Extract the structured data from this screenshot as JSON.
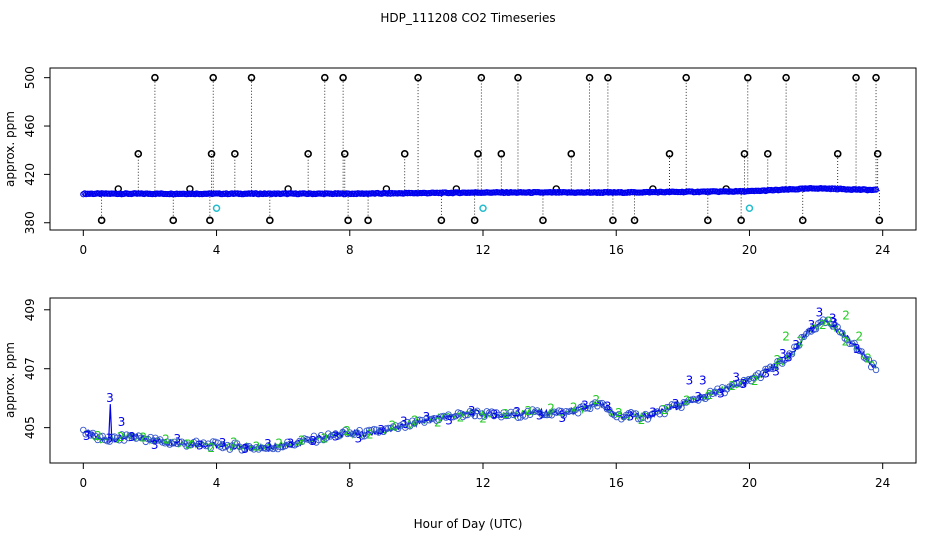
{
  "chart_data": [
    {
      "type": "scatter",
      "title": "HDP_111208  CO2 Timeseries",
      "xlabel": "",
      "ylabel": "approx. ppm",
      "xlim": [
        -1,
        25
      ],
      "ylim": [
        374,
        508
      ],
      "x_ticks": [
        "0",
        "4",
        "8",
        "12",
        "16",
        "20",
        "24"
      ],
      "y_ticks": [
        "380",
        "420",
        "460",
        "500"
      ],
      "colors": {
        "outlier": "#000000",
        "main": "#0000ee",
        "cal": "#22bbcc"
      },
      "baseline": [
        [
          0,
          404
        ],
        [
          4,
          404
        ],
        [
          8,
          404
        ],
        [
          12,
          405
        ],
        [
          16,
          405
        ],
        [
          20,
          406
        ],
        [
          22,
          408.5
        ],
        [
          23.8,
          407
        ]
      ],
      "high_points_x": [
        2.15,
        3.9,
        5.05,
        7.25,
        7.8,
        10.05,
        11.95,
        13.05,
        15.2,
        15.75,
        18.1,
        19.95,
        21.1,
        23.2,
        23.8
      ],
      "high_value": 500,
      "mid_points_x": [
        1.65,
        3.85,
        4.55,
        6.75,
        7.85,
        9.65,
        11.85,
        12.55,
        14.65,
        17.6,
        19.85,
        20.55,
        22.65,
        23.85
      ],
      "mid_value": 437,
      "low_points_x": [
        0.55,
        2.7,
        3.8,
        5.6,
        7.95,
        8.55,
        10.75,
        11.75,
        13.8,
        15.9,
        16.55,
        18.75,
        19.75,
        21.6,
        23.9
      ],
      "low_value": 382,
      "small_points": [
        [
          1.05,
          408
        ],
        [
          3.2,
          408
        ],
        [
          6.15,
          408
        ],
        [
          9.1,
          408
        ],
        [
          11.2,
          408
        ],
        [
          14.2,
          408
        ],
        [
          17.1,
          408
        ],
        [
          19.3,
          408
        ]
      ],
      "cal_points": [
        [
          4.0,
          392
        ],
        [
          12.0,
          392
        ],
        [
          20.0,
          392
        ]
      ]
    },
    {
      "type": "line",
      "title": "",
      "xlabel": "Hour of Day (UTC)",
      "ylabel": "approx. ppm",
      "xlim": [
        -1,
        25
      ],
      "ylim": [
        403.8,
        409.4
      ],
      "x_ticks": [
        "0",
        "4",
        "8",
        "12",
        "16",
        "20",
        "24"
      ],
      "y_ticks": [
        "405",
        "407",
        "409"
      ],
      "colors": {
        "series3": "#0000ee",
        "series2": "#22cc22",
        "circles": "#3355cc"
      },
      "series": [
        {
          "name": "3",
          "label": "3",
          "color": "#0000ee"
        },
        {
          "name": "2",
          "label": "2",
          "color": "#22cc22"
        }
      ],
      "anchors": [
        [
          0.0,
          404.9
        ],
        [
          0.5,
          404.6
        ],
        [
          0.8,
          404.6
        ],
        [
          1.5,
          404.7
        ],
        [
          2.5,
          404.5
        ],
        [
          4.0,
          404.4
        ],
        [
          5.5,
          404.3
        ],
        [
          6.5,
          404.5
        ],
        [
          7.8,
          404.8
        ],
        [
          8.5,
          404.8
        ],
        [
          9.5,
          405.0
        ],
        [
          10.5,
          405.3
        ],
        [
          11.8,
          405.5
        ],
        [
          12.5,
          405.4
        ],
        [
          13.5,
          405.5
        ],
        [
          14.5,
          405.5
        ],
        [
          15.5,
          405.8
        ],
        [
          16.0,
          405.4
        ],
        [
          17.0,
          405.4
        ],
        [
          18.0,
          405.8
        ],
        [
          19.0,
          406.2
        ],
        [
          19.8,
          406.5
        ],
        [
          20.5,
          406.9
        ],
        [
          21.2,
          407.4
        ],
        [
          21.8,
          408.3
        ],
        [
          22.3,
          408.6
        ],
        [
          22.8,
          408.2
        ],
        [
          23.3,
          407.6
        ],
        [
          23.8,
          407.0
        ]
      ]
    }
  ],
  "spikes": {
    "line_at_x": 0.8,
    "line_peak": 405.8,
    "label_3_at": [
      [
        0.8,
        406.0
      ],
      [
        1.15,
        405.2
      ],
      [
        18.2,
        406.6
      ],
      [
        18.6,
        406.6
      ],
      [
        19.6,
        406.7
      ],
      [
        20.8,
        406.9
      ],
      [
        21.0,
        407.5
      ],
      [
        21.4,
        407.8
      ],
      [
        22.1,
        408.9
      ],
      [
        22.5,
        408.7
      ]
    ],
    "label_2_at": [
      [
        21.1,
        408.1
      ],
      [
        22.4,
        408.6
      ],
      [
        22.9,
        408.8
      ],
      [
        23.3,
        408.1
      ]
    ]
  }
}
